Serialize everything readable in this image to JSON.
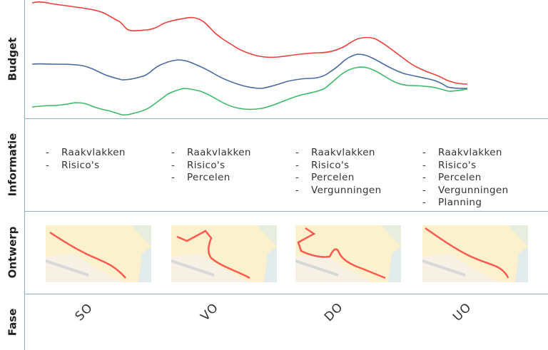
{
  "rows": {
    "budget": "Budget",
    "informatie": "Informatie",
    "ontwerp": "Ontwerp",
    "fase": "Fase"
  },
  "columns": [
    {
      "phase": "SO",
      "items": [
        "Raakvlakken",
        "Risico's"
      ]
    },
    {
      "phase": "VO",
      "items": [
        "Raakvlakken",
        "Risico's",
        "Percelen"
      ]
    },
    {
      "phase": "DO",
      "items": [
        "Raakvlakken",
        "Risico's",
        "Percelen",
        "Vergunningen"
      ]
    },
    {
      "phase": "UO",
      "items": [
        "Raakvlakken",
        "Risico's",
        "Percelen",
        "Vergunningen",
        "Planning"
      ]
    }
  ],
  "colors": {
    "red": "#e8413c",
    "blue": "#4a6a9e",
    "green": "#3cb96a",
    "divider": "#8fb0c8"
  }
}
